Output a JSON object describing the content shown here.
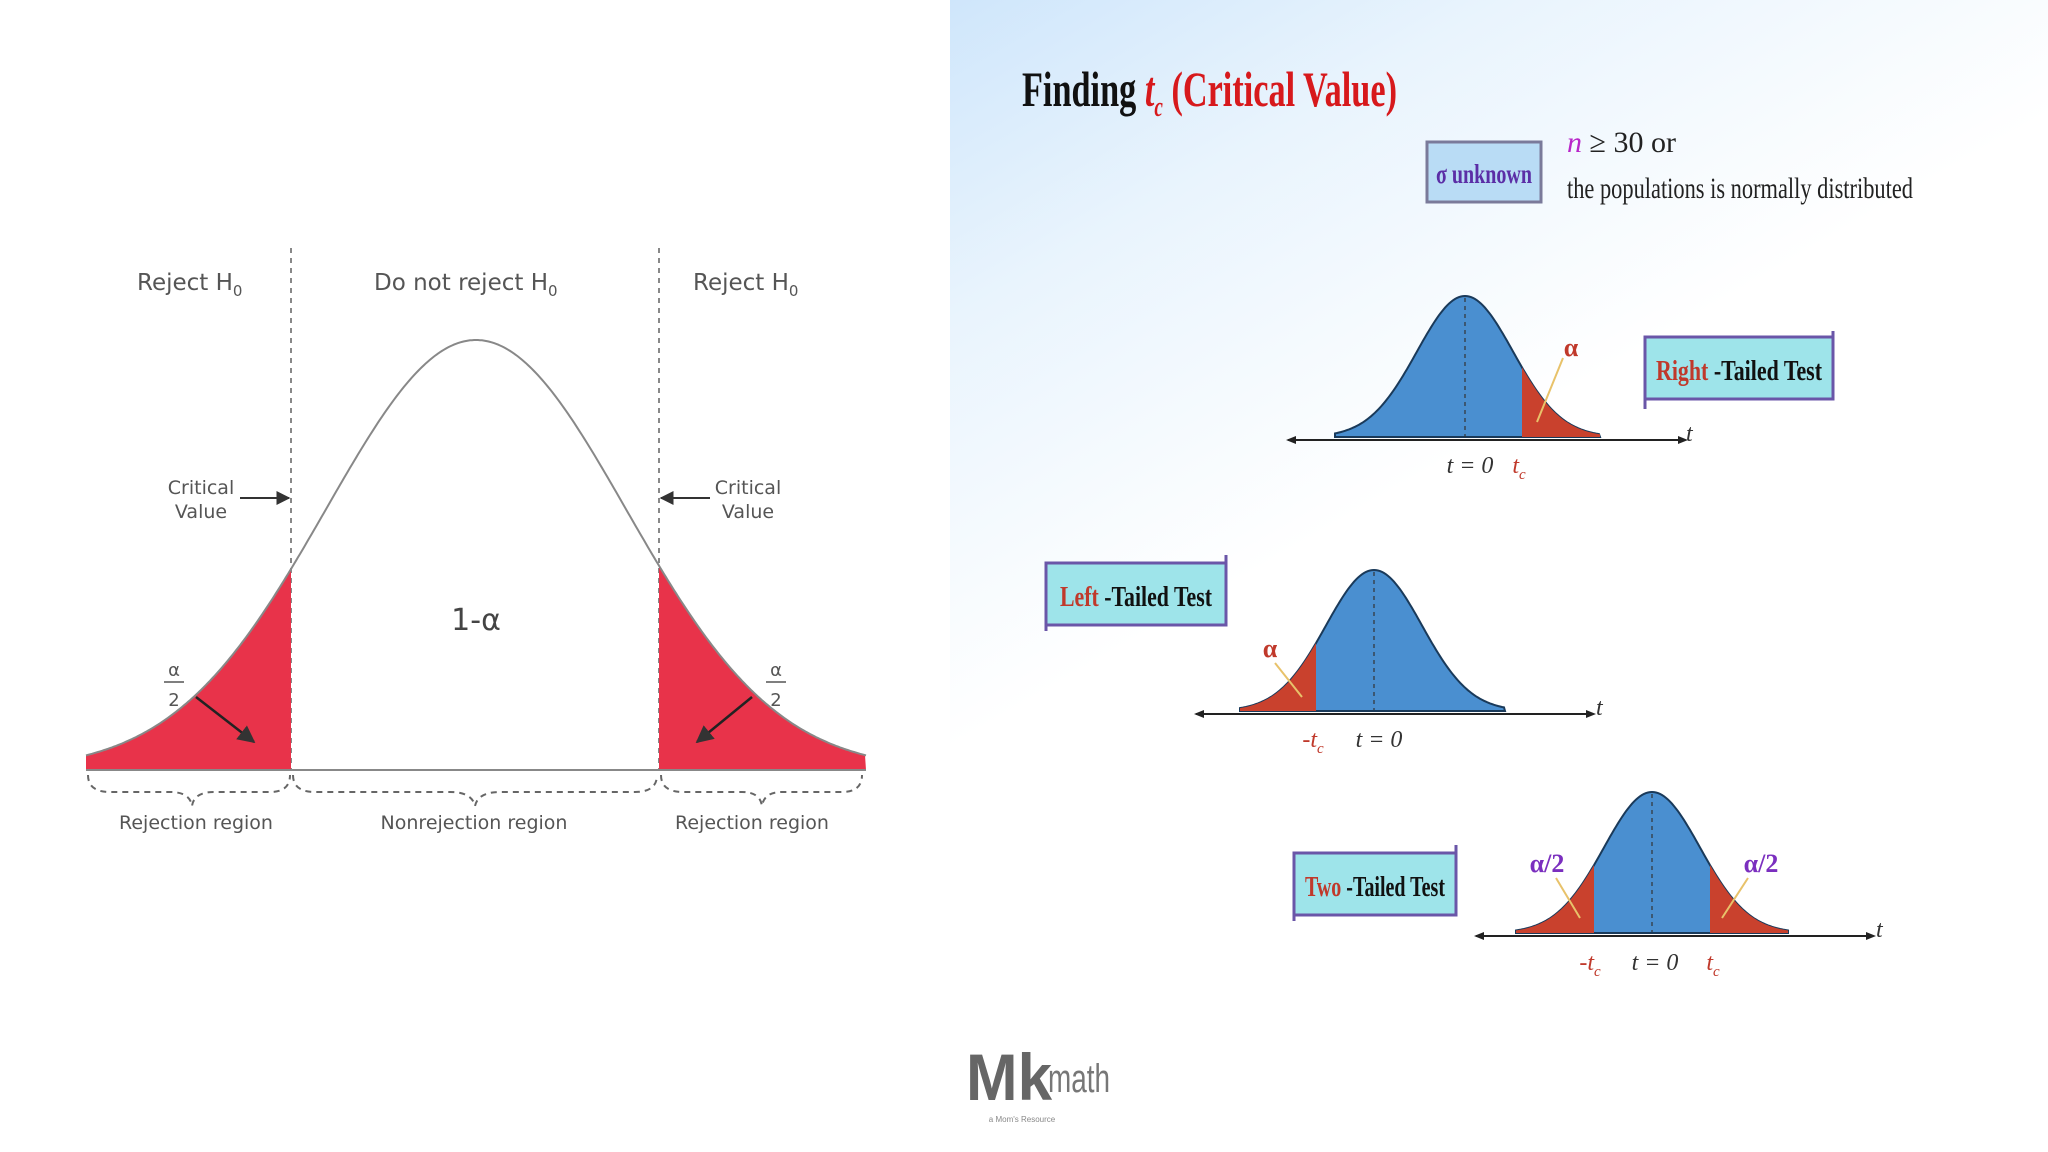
{
  "left_diagram": {
    "region_headers": {
      "left": "Reject H",
      "middle": "Do not reject H",
      "right": "Reject H",
      "subscript": "0"
    },
    "critical_label_line1": "Critical",
    "critical_label_line2": "Value",
    "alpha_num": "α",
    "alpha_den": "2",
    "center_label": "1-α",
    "bottom_labels": {
      "left": "Rejection region",
      "middle": "Nonrejection region",
      "right": "Rejection region"
    },
    "colors": {
      "tail": "#e8334a",
      "curve": "#888888"
    }
  },
  "right_panel": {
    "title_prefix": "Finding ",
    "title_t": "t",
    "title_sub": "c",
    "title_suffix": " (Critical Value)",
    "sigma_box": "σ unknown",
    "condition_n": "n",
    "condition_rest": " ≥ 30 or",
    "condition_line2": "the populations is normally distributed",
    "tests": {
      "right": {
        "word": "Right",
        "rest": " -Tailed Test"
      },
      "left": {
        "word": "Left",
        "rest": " -Tailed Test"
      },
      "two": {
        "word": "Two",
        "rest": " -Tailed Test"
      }
    },
    "symbols": {
      "alpha": "α",
      "alpha_half": "α/2",
      "t0": "t = 0",
      "tc": "t",
      "tc_sub": "c",
      "neg_tc": "-t",
      "t_axis": "t"
    },
    "colors": {
      "curve_fill": "#4a8fd0",
      "tail_fill": "#c9412d",
      "title_red": "#d7191c",
      "alpha_red": "#c0392b",
      "alpha_purple": "#7b2fbf",
      "box_fill": "#9ee4ea",
      "box_border": "#6a56a8"
    }
  },
  "logo": {
    "mk": "Mk",
    "math": "math",
    "tagline": "a Mom's Resource"
  }
}
